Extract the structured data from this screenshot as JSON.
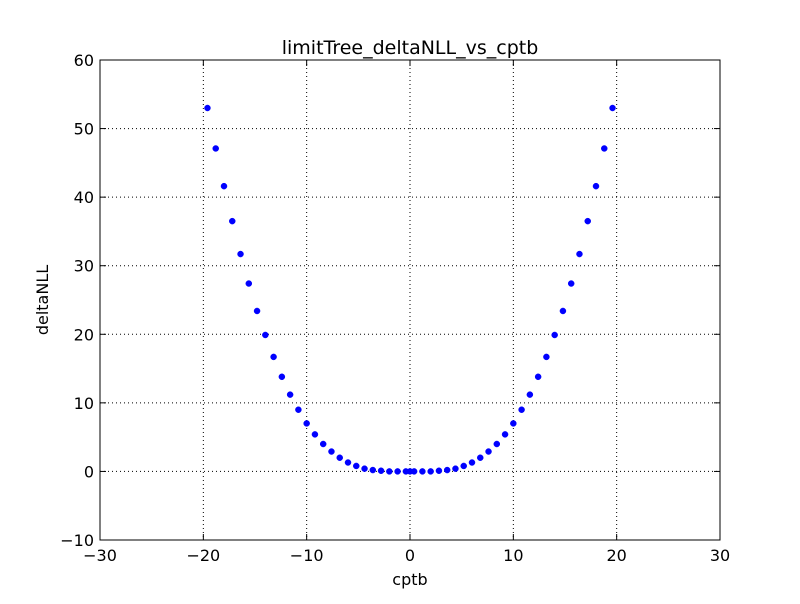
{
  "chart_data": {
    "type": "scatter",
    "title": "limitTree_deltaNLL_vs_cptb",
    "xlabel": "cptb",
    "ylabel": "deltaNLL",
    "xlim": [
      -30,
      30
    ],
    "ylim": [
      -10,
      60
    ],
    "xticks": [
      -30,
      -20,
      -10,
      0,
      10,
      20,
      30
    ],
    "yticks": [
      -10,
      0,
      10,
      20,
      30,
      40,
      50,
      60
    ],
    "xtick_labels": [
      "−30",
      "−20",
      "−10",
      "0",
      "10",
      "20",
      "30"
    ],
    "ytick_labels": [
      "−10",
      "0",
      "10",
      "20",
      "30",
      "40",
      "50",
      "60"
    ],
    "grid": true,
    "legend": "none",
    "marker_color": "#0000ff",
    "series": [
      {
        "x": [
          -19.6,
          -18.8,
          -18.0,
          -17.2,
          -16.4,
          -15.6,
          -14.8,
          -14.0,
          -13.2,
          -12.4,
          -11.6,
          -10.8,
          -10.0,
          -9.2,
          -8.4,
          -7.6,
          -6.8,
          -6.0,
          -5.2,
          -4.4,
          -3.6,
          -2.8,
          -2.0,
          -1.2,
          -0.4,
          0.0,
          0.4,
          1.2,
          2.0,
          2.8,
          3.6,
          4.4,
          5.2,
          6.0,
          6.8,
          7.6,
          8.4,
          9.2,
          10.0,
          10.8,
          11.6,
          12.4,
          13.2,
          14.0,
          14.8,
          15.6,
          16.4,
          17.2,
          18.0,
          18.8,
          19.6
        ],
        "y": [
          53.0,
          47.1,
          41.6,
          36.5,
          31.7,
          27.4,
          23.4,
          19.9,
          16.7,
          13.8,
          11.2,
          9.0,
          7.0,
          5.4,
          4.0,
          2.9,
          2.0,
          1.3,
          0.8,
          0.4,
          0.2,
          0.1,
          0.0,
          0.0,
          0.0,
          0.0,
          0.0,
          0.0,
          0.0,
          0.1,
          0.2,
          0.4,
          0.8,
          1.3,
          2.0,
          2.9,
          4.0,
          5.4,
          7.0,
          9.0,
          11.2,
          13.8,
          16.7,
          19.9,
          23.4,
          27.4,
          31.7,
          36.5,
          41.6,
          47.1,
          53.0
        ]
      }
    ]
  }
}
